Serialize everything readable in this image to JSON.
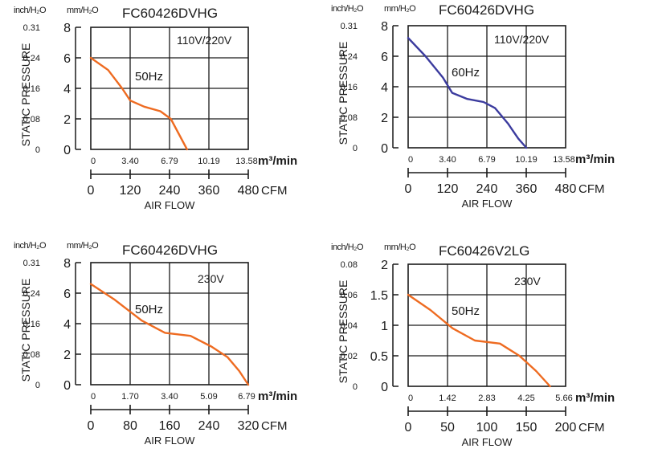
{
  "chart_data": [
    {
      "type": "line",
      "title": "FC60426DVHG",
      "voltage_label": "110V/220V",
      "series": [
        {
          "name": "50Hz",
          "color": "#ee6b21",
          "x": [
            0,
            1.5,
            2.7,
            3.4,
            4.6,
            6.0,
            6.9,
            7.6,
            8.3
          ],
          "y": [
            6.0,
            5.2,
            4.0,
            3.2,
            2.8,
            2.5,
            2.0,
            1.0,
            0
          ]
        }
      ],
      "x_primary": {
        "label": "m³/min",
        "range": [
          0,
          13.58
        ],
        "ticks": [
          "0",
          "3.40",
          "6.79",
          "10.19",
          "13.58"
        ]
      },
      "x_secondary": {
        "label": "CFM",
        "ticks": [
          "0",
          "120",
          "240",
          "360",
          "480"
        ]
      },
      "y_left": {
        "label": "inch/H₂O",
        "ticks": [
          "0",
          "0.08",
          "0.16",
          "0.24",
          "0.31"
        ]
      },
      "y_right": {
        "label": "mm/H₂O",
        "range": [
          0,
          8
        ],
        "ticks": [
          "0",
          "2",
          "4",
          "6",
          "8"
        ]
      },
      "ylabel": "STATIC PRESSURE",
      "xlabel": "AIR FLOW"
    },
    {
      "type": "line",
      "title": "FC60426DVHG",
      "voltage_label": "110V/220V",
      "series": [
        {
          "name": "60Hz",
          "color": "#3b3b9e",
          "x": [
            0,
            1.5,
            3.0,
            3.8,
            5.1,
            6.5,
            7.5,
            8.6,
            9.5,
            10.19
          ],
          "y": [
            7.2,
            6.0,
            4.6,
            3.6,
            3.2,
            3.0,
            2.6,
            1.6,
            0.6,
            0
          ]
        }
      ],
      "x_primary": {
        "label": "m³/min",
        "range": [
          0,
          13.58
        ],
        "ticks": [
          "0",
          "3.40",
          "6.79",
          "10.19",
          "13.58"
        ]
      },
      "x_secondary": {
        "label": "CFM",
        "ticks": [
          "0",
          "120",
          "240",
          "360",
          "480"
        ]
      },
      "y_left": {
        "label": "inch/H₂O",
        "ticks": [
          "0",
          "0.08",
          "0.16",
          "0.24",
          "0.31"
        ]
      },
      "y_right": {
        "label": "mm/H₂O",
        "range": [
          0,
          8
        ],
        "ticks": [
          "0",
          "2",
          "4",
          "6",
          "8"
        ]
      },
      "ylabel": "STATIC PRESSURE",
      "xlabel": "AIR FLOW"
    },
    {
      "type": "line",
      "title": "FC60426DVHG",
      "voltage_label": "230V",
      "series": [
        {
          "name": "50Hz",
          "color": "#ee6b21",
          "x": [
            0,
            1.0,
            2.2,
            3.2,
            4.3,
            5.2,
            5.9,
            6.4,
            6.79
          ],
          "y": [
            6.6,
            5.6,
            4.2,
            3.4,
            3.2,
            2.5,
            1.8,
            0.9,
            0
          ]
        }
      ],
      "x_primary": {
        "label": "m³/min",
        "range": [
          0,
          6.79
        ],
        "ticks": [
          "0",
          "1.70",
          "3.40",
          "5.09",
          "6.79"
        ]
      },
      "x_secondary": {
        "label": "CFM",
        "ticks": [
          "0",
          "80",
          "160",
          "240",
          "320"
        ]
      },
      "y_left": {
        "label": "inch/H₂O",
        "ticks": [
          "0",
          "0.08",
          "0.16",
          "0.24",
          "0.31"
        ]
      },
      "y_right": {
        "label": "mm/H₂O",
        "range": [
          0,
          8
        ],
        "ticks": [
          "0",
          "2",
          "4",
          "6",
          "8"
        ]
      },
      "ylabel": "STATIC PRESSURE",
      "xlabel": "AIR FLOW"
    },
    {
      "type": "line",
      "title": "FC60426V2LG",
      "voltage_label": "230V",
      "series": [
        {
          "name": "50Hz",
          "color": "#ee6b21",
          "x": [
            0,
            0.8,
            1.6,
            2.4,
            3.3,
            4.0,
            4.6,
            5.1
          ],
          "y": [
            1.5,
            1.25,
            0.95,
            0.75,
            0.7,
            0.5,
            0.25,
            0
          ]
        }
      ],
      "x_primary": {
        "label": "m³/min",
        "range": [
          0,
          5.66
        ],
        "ticks": [
          "0",
          "1.42",
          "2.83",
          "4.25",
          "5.66"
        ]
      },
      "x_secondary": {
        "label": "CFM",
        "ticks": [
          "0",
          "50",
          "100",
          "150",
          "200"
        ]
      },
      "y_left": {
        "label": "inch/H₂O",
        "ticks": [
          "0",
          "0.02",
          "0.04",
          "0.06",
          "0.08"
        ]
      },
      "y_right": {
        "label": "mm/H₂O",
        "range": [
          0,
          2
        ],
        "ticks": [
          "0",
          "0.5",
          "1",
          "1.5",
          "2"
        ]
      },
      "ylabel": "STATIC PRESSURE",
      "xlabel": "AIR FLOW"
    }
  ]
}
